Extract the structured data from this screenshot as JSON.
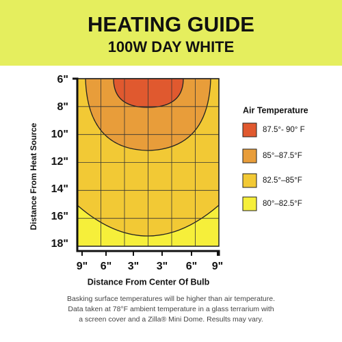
{
  "header": {
    "title": "HEATING GUIDE",
    "subtitle": "100W DAY WHITE"
  },
  "y_axis": {
    "title": "Distance From Heat Source",
    "labels": [
      "6\"",
      "8\"",
      "10\"",
      "12\"",
      "14\"",
      "16\"",
      "18\""
    ]
  },
  "x_axis": {
    "title": "Distance From Center Of Bulb",
    "labels": [
      "9\"",
      "6\"",
      "3\"",
      "3\"",
      "6\"",
      "9\""
    ]
  },
  "legend": {
    "title": "Air Temperature",
    "items": [
      {
        "label": "87.5°- 90° F",
        "color": "#e0592f"
      },
      {
        "label": "85°–87.5°F",
        "color": "#e89d3a"
      },
      {
        "label": "82.5°–85°F",
        "color": "#f2c935"
      },
      {
        "label": "80°–82.5°F",
        "color": "#f6ef3a"
      }
    ]
  },
  "footnote": [
    "Basking surface temperatures will be higher than air temperature.",
    "Data taken at 78°F ambient temperature in a glass terrarium with",
    "a screen cover and a Zilla® Mini Dome. Results may vary."
  ]
}
